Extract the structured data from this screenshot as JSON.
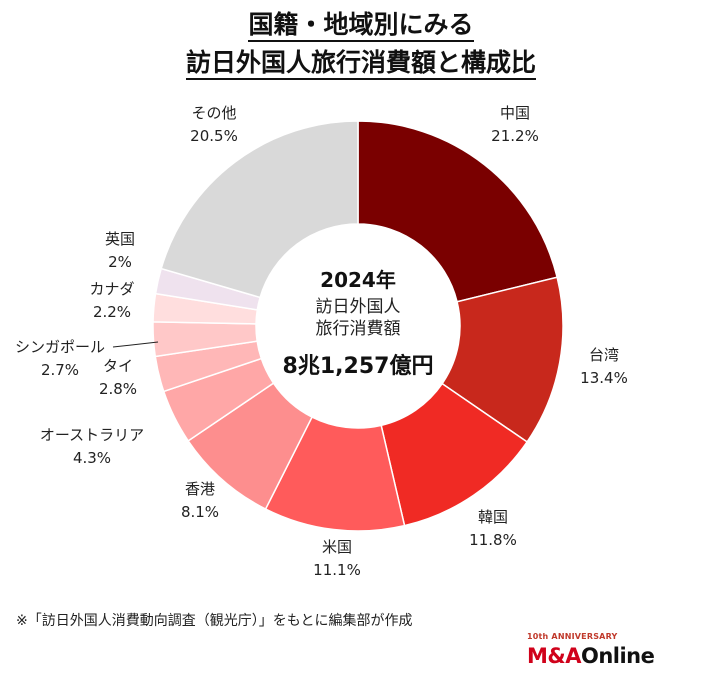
{
  "title": {
    "line1": "国籍・地域別にみる",
    "line2": "訪日外国人旅行消費額と構成比"
  },
  "center": {
    "year": "2024年",
    "label_line1": "訪日外国人",
    "label_line2": "旅行消費額",
    "total": "8兆1,257億円"
  },
  "chart_data": {
    "type": "pie",
    "subtype": "donut",
    "unit": "%",
    "slices": [
      {
        "name": "中国",
        "value": 21.2,
        "label": "21.2%",
        "color": "#7a0000"
      },
      {
        "name": "台湾",
        "value": 13.4,
        "label": "13.4%",
        "color": "#c8281c"
      },
      {
        "name": "韓国",
        "value": 11.8,
        "label": "11.8%",
        "color": "#f02a24"
      },
      {
        "name": "米国",
        "value": 11.1,
        "label": "11.1%",
        "color": "#ff5b5b"
      },
      {
        "name": "香港",
        "value": 8.1,
        "label": "8.1%",
        "color": "#fd8e8e"
      },
      {
        "name": "オーストラリア",
        "value": 4.3,
        "label": "4.3%",
        "color": "#ffa7a7"
      },
      {
        "name": "タイ",
        "value": 2.8,
        "label": "2.8%",
        "color": "#ffb7b7"
      },
      {
        "name": "シンガポール",
        "value": 2.7,
        "label": "2.7%",
        "color": "#ffc8c8"
      },
      {
        "name": "カナダ",
        "value": 2.2,
        "label": "2.2%",
        "color": "#ffdede"
      },
      {
        "name": "英国",
        "value": 2.0,
        "label": "2%",
        "color": "#efe2ee"
      },
      {
        "name": "その他",
        "value": 20.5,
        "label": "20.5%",
        "color": "#d9d9d9"
      }
    ]
  },
  "footnote": "※「訪日外国人消費動向調査（観光庁）」をもとに編集部が作成",
  "logo": {
    "anniversary": "10th ANNIVERSARY",
    "ma": "M&A",
    "online": "Online"
  }
}
